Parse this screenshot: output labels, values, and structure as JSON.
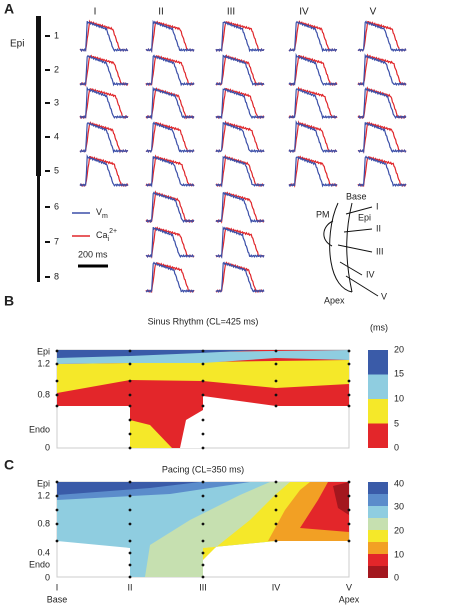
{
  "panel_a": {
    "label": "A",
    "columns": [
      "I",
      "II",
      "III",
      "IV",
      "V"
    ],
    "epi": "Epi",
    "rows": [
      "1",
      "2",
      "3",
      "4",
      "5",
      "6",
      "7",
      "8"
    ],
    "legend": {
      "vm": {
        "base": "V",
        "sub": "m"
      },
      "ca": {
        "base": "Ca",
        "sub": "i",
        "sup": "2+"
      }
    },
    "scale_bar": "200 ms",
    "diagram": {
      "base": "Base",
      "pm": "PM",
      "epi": "Epi",
      "apex": "Apex",
      "sites": [
        "I",
        "II",
        "III",
        "IV",
        "V"
      ]
    }
  },
  "panel_b": {
    "label": "B",
    "title": "Sinus Rhythm (CL=425 ms)",
    "y_labels": [
      "Epi",
      "1.2",
      "0.8",
      "Endo",
      "0"
    ],
    "colorbar": {
      "unit": "(ms)",
      "labels": [
        "20",
        "15",
        "10",
        "5",
        "0"
      ]
    }
  },
  "panel_c": {
    "label": "C",
    "title": "Pacing (CL=350 ms)",
    "y_labels": [
      "Epi",
      "1.2",
      "0.8",
      "0.4",
      "Endo",
      "0"
    ],
    "colorbar": {
      "labels": [
        "40",
        "30",
        "20",
        "10",
        "0"
      ]
    },
    "x_labels": [
      "I",
      "II",
      "III",
      "IV",
      "V"
    ],
    "x_ends": [
      "Base",
      "Apex"
    ]
  }
}
